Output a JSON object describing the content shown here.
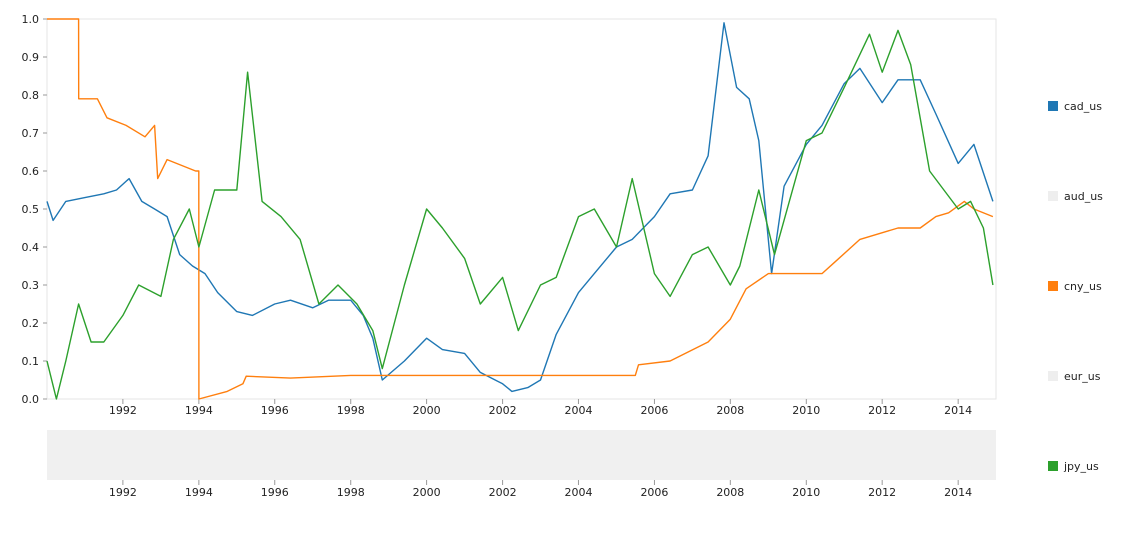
{
  "chart_data": {
    "type": "line",
    "title": "",
    "xlabel": "",
    "ylabel": "",
    "xlim": [
      "1990-01-01",
      "2014-12-31"
    ],
    "ylim": [
      0,
      1
    ],
    "grid": false,
    "legend_position": "right",
    "y_ticks": [
      "0.0",
      "0.1",
      "0.2",
      "0.3",
      "0.4",
      "0.5",
      "0.6",
      "0.7",
      "0.8",
      "0.9",
      "1.0"
    ],
    "x_ticks": [
      "1992",
      "1994",
      "1996",
      "1998",
      "2000",
      "2002",
      "2004",
      "2006",
      "2008",
      "2010",
      "2012",
      "2014"
    ],
    "navigator_x_ticks": [
      "1992",
      "1994",
      "1996",
      "1998",
      "2000",
      "2002",
      "2004",
      "2006",
      "2008",
      "2010",
      "2012",
      "2014"
    ],
    "series": [
      {
        "name": "cad_us",
        "color": "#1f77b4",
        "visible": true,
        "x": [
          "1990-01-01",
          "1990-03-01",
          "1990-07-01",
          "1991-01-01",
          "1991-07-01",
          "1991-11-01",
          "1992-03-01",
          "1992-07-01",
          "1992-11-01",
          "1993-03-01",
          "1993-07-01",
          "1993-11-01",
          "1994-03-01",
          "1994-07-01",
          "1995-01-01",
          "1995-06-01",
          "1996-01-01",
          "1996-06-01",
          "1997-01-01",
          "1997-06-01",
          "1998-01-01",
          "1998-05-01",
          "1998-08-01",
          "1998-11-01",
          "1999-06-01",
          "2000-01-01",
          "2000-06-01",
          "2001-01-01",
          "2001-06-01",
          "2002-01-01",
          "2002-04-01",
          "2002-09-01",
          "2003-01-01",
          "2003-06-01",
          "2004-01-01",
          "2004-06-01",
          "2005-01-01",
          "2005-06-01",
          "2006-01-01",
          "2006-06-01",
          "2007-01-01",
          "2007-06-01",
          "2007-11-01",
          "2008-03-01",
          "2008-07-01",
          "2008-10-01",
          "2009-02-01",
          "2009-06-01",
          "2010-01-01",
          "2010-06-01",
          "2011-01-01",
          "2011-06-01",
          "2012-01-01",
          "2012-06-01",
          "2013-01-01",
          "2013-06-01",
          "2014-01-01",
          "2014-06-01",
          "2014-12-01"
        ],
        "values": [
          0.52,
          0.47,
          0.52,
          0.53,
          0.54,
          0.55,
          0.58,
          0.52,
          0.5,
          0.48,
          0.38,
          0.35,
          0.33,
          0.28,
          0.23,
          0.22,
          0.25,
          0.26,
          0.24,
          0.26,
          0.26,
          0.22,
          0.16,
          0.05,
          0.1,
          0.16,
          0.13,
          0.12,
          0.07,
          0.04,
          0.02,
          0.03,
          0.05,
          0.17,
          0.28,
          0.33,
          0.4,
          0.42,
          0.48,
          0.54,
          0.55,
          0.64,
          0.99,
          0.82,
          0.79,
          0.68,
          0.33,
          0.56,
          0.67,
          0.72,
          0.83,
          0.87,
          0.78,
          0.84,
          0.84,
          0.75,
          0.62,
          0.67,
          0.52
        ]
      },
      {
        "name": "aud_us",
        "color": "#e8e8e8",
        "visible": false,
        "x": [],
        "values": []
      },
      {
        "name": "cny_us",
        "color": "#ff7f0e",
        "visible": true,
        "x": [
          "1990-01-01",
          "1990-11-01",
          "1990-11-02",
          "1991-05-01",
          "1991-08-01",
          "1992-02-01",
          "1992-08-01",
          "1992-11-01",
          "1992-12-01",
          "1993-03-01",
          "1993-12-01",
          "1993-12-31",
          "1994-01-01",
          "1994-10-01",
          "1995-03-01",
          "1995-04-01",
          "1996-06-01",
          "1998-01-01",
          "2005-07-01",
          "2005-08-01",
          "2006-06-01",
          "2007-06-01",
          "2008-01-01",
          "2008-06-01",
          "2009-01-01",
          "2010-06-01",
          "2010-10-01",
          "2011-06-01",
          "2012-06-01",
          "2013-01-01",
          "2013-06-01",
          "2013-10-01",
          "2014-03-01",
          "2014-06-01",
          "2014-12-01"
        ],
        "values": [
          1.0,
          1.0,
          0.79,
          0.79,
          0.74,
          0.72,
          0.69,
          0.72,
          0.58,
          0.63,
          0.6,
          0.6,
          0.0,
          0.02,
          0.04,
          0.06,
          0.055,
          0.062,
          0.062,
          0.09,
          0.1,
          0.15,
          0.21,
          0.29,
          0.33,
          0.33,
          0.36,
          0.42,
          0.45,
          0.45,
          0.48,
          0.49,
          0.52,
          0.5,
          0.48
        ]
      },
      {
        "name": "eur_us",
        "color": "#e8e8e8",
        "visible": false,
        "x": [],
        "values": []
      },
      {
        "name": "jpy_us",
        "color": "#2ca02c",
        "visible": true,
        "x": [
          "1990-01-01",
          "1990-04-01",
          "1990-07-01",
          "1990-11-01",
          "1991-03-01",
          "1991-07-01",
          "1992-01-01",
          "1992-06-01",
          "1993-01-01",
          "1993-05-01",
          "1993-10-01",
          "1994-01-01",
          "1994-06-01",
          "1995-01-01",
          "1995-04-15",
          "1995-09-01",
          "1996-03-01",
          "1996-09-01",
          "1997-03-01",
          "1997-09-01",
          "1998-03-01",
          "1998-08-01",
          "1998-11-01",
          "1999-06-01",
          "2000-01-01",
          "2000-06-01",
          "2001-01-01",
          "2001-06-01",
          "2002-01-01",
          "2002-06-01",
          "2003-01-01",
          "2003-06-01",
          "2004-01-01",
          "2004-06-01",
          "2005-01-01",
          "2005-06-01",
          "2006-01-01",
          "2006-06-01",
          "2007-01-01",
          "2007-06-01",
          "2008-01-01",
          "2008-04-01",
          "2008-10-01",
          "2009-03-01",
          "2010-01-01",
          "2010-06-01",
          "2011-01-01",
          "2011-09-01",
          "2012-01-01",
          "2012-06-01",
          "2012-10-01",
          "2013-04-01",
          "2014-01-01",
          "2014-05-01",
          "2014-09-01",
          "2014-12-01"
        ],
        "values": [
          0.1,
          0.0,
          0.1,
          0.25,
          0.15,
          0.15,
          0.22,
          0.3,
          0.27,
          0.42,
          0.5,
          0.4,
          0.55,
          0.55,
          0.86,
          0.52,
          0.48,
          0.42,
          0.25,
          0.3,
          0.25,
          0.18,
          0.08,
          0.3,
          0.5,
          0.45,
          0.37,
          0.25,
          0.32,
          0.18,
          0.3,
          0.32,
          0.48,
          0.5,
          0.4,
          0.58,
          0.33,
          0.27,
          0.38,
          0.4,
          0.3,
          0.35,
          0.55,
          0.38,
          0.68,
          0.7,
          0.82,
          0.96,
          0.86,
          0.97,
          0.88,
          0.6,
          0.5,
          0.52,
          0.45,
          0.3
        ]
      }
    ]
  }
}
